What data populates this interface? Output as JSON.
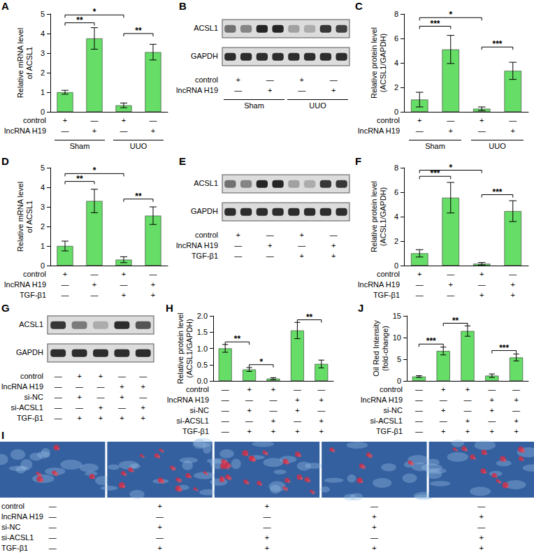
{
  "chart_data": [
    {
      "panel": "A",
      "type": "bar",
      "ylabel": "Relative mRNA level\nof ACSL1",
      "categories": [
        null,
        null,
        null,
        null
      ],
      "values": [
        1.0,
        3.75,
        0.33,
        3.05
      ],
      "errors": [
        0.1,
        0.55,
        0.12,
        0.4
      ],
      "color": "#66dd66",
      "ylim": [
        0,
        5
      ],
      "yticks": [
        0,
        1,
        2,
        3,
        4,
        5
      ],
      "grid": false,
      "conditions": [
        {
          "label": "control",
          "marks": [
            "+",
            "—",
            "+",
            "—"
          ]
        },
        {
          "label": "lncRNA H19",
          "marks": [
            "—",
            "+",
            "—",
            "+"
          ]
        }
      ],
      "groups": [
        {
          "label": "Sham",
          "from": 0,
          "to": 1
        },
        {
          "label": "UUO",
          "from": 2,
          "to": 3
        }
      ],
      "significance": [
        {
          "from": 0,
          "to": 1,
          "y": 4.55,
          "text": "**"
        },
        {
          "from": 0,
          "to": 2,
          "y": 4.95,
          "text": "*"
        },
        {
          "from": 2,
          "to": 3,
          "y": 4.0,
          "text": "**"
        }
      ]
    },
    {
      "panel": "C",
      "type": "bar",
      "ylabel": "Relative protein level\n(ACSL1/GAPDH)",
      "categories": [
        null,
        null,
        null,
        null
      ],
      "values": [
        1.0,
        5.1,
        0.25,
        3.35
      ],
      "errors": [
        0.6,
        1.15,
        0.15,
        0.7
      ],
      "color": "#66dd66",
      "ylim": [
        0,
        8
      ],
      "yticks": [
        0,
        2,
        4,
        6,
        8
      ],
      "grid": false,
      "conditions": [
        {
          "label": "control",
          "marks": [
            "+",
            "—",
            "+",
            "—"
          ]
        },
        {
          "label": "lncRNA H19",
          "marks": [
            "—",
            "+",
            "—",
            "+"
          ]
        }
      ],
      "groups": [
        {
          "label": "Sham",
          "from": 0,
          "to": 1
        },
        {
          "label": "UUO",
          "from": 2,
          "to": 3
        }
      ],
      "significance": [
        {
          "from": 0,
          "to": 1,
          "y": 7.0,
          "text": "***"
        },
        {
          "from": 0,
          "to": 2,
          "y": 7.7,
          "text": "*"
        },
        {
          "from": 2,
          "to": 3,
          "y": 5.3,
          "text": "***"
        }
      ]
    },
    {
      "panel": "D",
      "type": "bar",
      "ylabel": "Relative mRNA level\nof ACSL1",
      "categories": [
        null,
        null,
        null,
        null
      ],
      "values": [
        1.0,
        3.3,
        0.3,
        2.55
      ],
      "errors": [
        0.25,
        0.6,
        0.15,
        0.45
      ],
      "color": "#66dd66",
      "ylim": [
        0,
        5
      ],
      "yticks": [
        0,
        1,
        2,
        3,
        4,
        5
      ],
      "grid": false,
      "conditions": [
        {
          "label": "control",
          "marks": [
            "+",
            "—",
            "+",
            "—"
          ]
        },
        {
          "label": "lncRNA H19",
          "marks": [
            "—",
            "+",
            "—",
            "+"
          ]
        },
        {
          "label": "TGF-β1",
          "marks": [
            "—",
            "—",
            "+",
            "+"
          ]
        }
      ],
      "significance": [
        {
          "from": 0,
          "to": 1,
          "y": 4.3,
          "text": "**"
        },
        {
          "from": 0,
          "to": 2,
          "y": 4.7,
          "text": "*"
        },
        {
          "from": 2,
          "to": 3,
          "y": 3.4,
          "text": "**"
        }
      ]
    },
    {
      "panel": "F",
      "type": "bar",
      "ylabel": "Relative protein level\n(ACSL1/GAPDH)",
      "categories": [
        null,
        null,
        null,
        null
      ],
      "values": [
        1.0,
        5.55,
        0.15,
        4.45
      ],
      "errors": [
        0.3,
        1.25,
        0.1,
        0.85
      ],
      "color": "#66dd66",
      "ylim": [
        0,
        8
      ],
      "yticks": [
        0,
        2,
        4,
        6,
        8
      ],
      "grid": false,
      "conditions": [
        {
          "label": "control",
          "marks": [
            "+",
            "—",
            "+",
            "—"
          ]
        },
        {
          "label": "lncRNA H19",
          "marks": [
            "—",
            "+",
            "—",
            "+"
          ]
        },
        {
          "label": "TGF-β1",
          "marks": [
            "—",
            "—",
            "+",
            "+"
          ]
        }
      ],
      "significance": [
        {
          "from": 0,
          "to": 1,
          "y": 7.3,
          "text": "***"
        },
        {
          "from": 0,
          "to": 2,
          "y": 7.8,
          "text": "*"
        },
        {
          "from": 2,
          "to": 3,
          "y": 5.8,
          "text": "***"
        }
      ]
    },
    {
      "panel": "H",
      "type": "bar",
      "ylabel": "Relative protein level\n(ACSL1/GAPDH)",
      "categories": [
        null,
        null,
        null,
        null,
        null
      ],
      "values": [
        1.0,
        0.35,
        0.07,
        1.55,
        0.52
      ],
      "errors": [
        0.12,
        0.06,
        0.03,
        0.25,
        0.12
      ],
      "color": "#66dd66",
      "ylim": [
        0,
        2
      ],
      "yticks": [
        {
          "value": 0,
          "label": "0.0"
        },
        {
          "value": 0.5,
          "label": "0.5"
        },
        {
          "value": 1,
          "label": "1.0"
        },
        {
          "value": 1.5,
          "label": "1.5"
        },
        {
          "value": 2,
          "label": "2.0"
        }
      ],
      "grid": false,
      "conditions": [
        {
          "label": "control",
          "marks": [
            "—",
            "+",
            "+",
            "—",
            "—"
          ]
        },
        {
          "label": "lncRNA H19",
          "marks": [
            "—",
            "—",
            "—",
            "+",
            "+"
          ]
        },
        {
          "label": "si-NC",
          "marks": [
            "—",
            "+",
            "—",
            "+",
            "—"
          ]
        },
        {
          "label": "si-ACSL1",
          "marks": [
            "—",
            "—",
            "+",
            "—",
            "+"
          ]
        },
        {
          "label": "TGF-β1",
          "marks": [
            "—",
            "+",
            "+",
            "+",
            "+"
          ]
        }
      ],
      "significance": [
        {
          "from": 0,
          "to": 1,
          "y": 1.2,
          "text": "**"
        },
        {
          "from": 1,
          "to": 2,
          "y": 0.5,
          "text": "*"
        },
        {
          "from": 3,
          "to": 4,
          "y": 1.88,
          "text": "**"
        }
      ]
    },
    {
      "panel": "J",
      "type": "bar",
      "ylabel": "Oil Red Intensity\n(fold-change)",
      "categories": [
        null,
        null,
        null,
        null,
        null
      ],
      "values": [
        1.0,
        6.9,
        11.5,
        1.2,
        5.4
      ],
      "errors": [
        0.2,
        0.9,
        1.2,
        0.4,
        0.8
      ],
      "color": "#66dd66",
      "ylim": [
        0,
        15
      ],
      "yticks": [
        0,
        5,
        10,
        15
      ],
      "grid": false,
      "conditions": [
        {
          "label": "control",
          "marks": [
            "—",
            "+",
            "+",
            "—",
            "—"
          ]
        },
        {
          "label": "lncRNA H19",
          "marks": [
            "—",
            "—",
            "—",
            "+",
            "+"
          ]
        },
        {
          "label": "si-NC",
          "marks": [
            "—",
            "+",
            "—",
            "+",
            "—"
          ]
        },
        {
          "label": "si-ACSL1",
          "marks": [
            "—",
            "—",
            "+",
            "—",
            "+"
          ]
        },
        {
          "label": "TGF-β1",
          "marks": [
            "—",
            "+",
            "+",
            "+",
            "+"
          ]
        }
      ],
      "significance": [
        {
          "from": 0,
          "to": 1,
          "y": 8.5,
          "text": "***"
        },
        {
          "from": 1,
          "to": 2,
          "y": 13.3,
          "text": "**"
        },
        {
          "from": 3,
          "to": 4,
          "y": 7.0,
          "text": "***"
        }
      ]
    }
  ],
  "blots": [
    {
      "panel": "B",
      "lanes": 8,
      "rows": [
        {
          "label": "ACSL1",
          "bands": [
            0.55,
            0.45,
            0.95,
            0.95,
            0.3,
            0.25,
            0.85,
            0.8
          ]
        },
        {
          "label": "GAPDH",
          "bands": [
            0.9,
            0.9,
            0.9,
            0.9,
            0.9,
            0.9,
            0.9,
            0.9
          ]
        }
      ],
      "conditions": [
        {
          "label": "control",
          "marks": [
            "+",
            "—",
            "+",
            "—"
          ]
        },
        {
          "label": "lncRNA H19",
          "marks": [
            "—",
            "+",
            "—",
            "+"
          ]
        }
      ],
      "groups": [
        {
          "label": "Sham",
          "from": 0,
          "to": 1
        },
        {
          "label": "UUO",
          "from": 2,
          "to": 3
        }
      ]
    },
    {
      "panel": "E",
      "lanes": 8,
      "rows": [
        {
          "label": "ACSL1",
          "bands": [
            0.55,
            0.45,
            0.95,
            0.95,
            0.3,
            0.25,
            0.85,
            0.85
          ]
        },
        {
          "label": "GAPDH",
          "bands": [
            0.9,
            0.9,
            0.9,
            0.9,
            0.9,
            0.9,
            0.9,
            0.9
          ]
        }
      ],
      "conditions": [
        {
          "label": "control",
          "marks": [
            "+",
            "—",
            "+",
            "—"
          ]
        },
        {
          "label": "lncRNA H19",
          "marks": [
            "—",
            "+",
            "—",
            "+"
          ]
        },
        {
          "label": "TGF-β1",
          "marks": [
            "—",
            "—",
            "+",
            "+"
          ]
        }
      ]
    },
    {
      "panel": "G",
      "lanes": 5,
      "rows": [
        {
          "label": "ACSL1",
          "bands": [
            0.85,
            0.5,
            0.25,
            0.9,
            0.7
          ]
        },
        {
          "label": "GAPDH",
          "bands": [
            0.9,
            0.9,
            0.9,
            0.9,
            0.9
          ]
        }
      ],
      "conditions": [
        {
          "label": "control",
          "marks": [
            "—",
            "+",
            "+",
            "—",
            "—"
          ]
        },
        {
          "label": "lncRNA H19",
          "marks": [
            "—",
            "—",
            "—",
            "+",
            "+"
          ]
        },
        {
          "label": "si-NC",
          "marks": [
            "—",
            "+",
            "—",
            "+",
            "—"
          ]
        },
        {
          "label": "si-ACSL1",
          "marks": [
            "—",
            "—",
            "+",
            "—",
            "+"
          ]
        },
        {
          "label": "TGF-β1",
          "marks": [
            "—",
            "+",
            "+",
            "+",
            "+"
          ]
        }
      ]
    }
  ],
  "micrographs": {
    "panel": "I",
    "conditions": [
      {
        "label": "control",
        "marks": [
          "—",
          "+",
          "+",
          "—",
          "—"
        ]
      },
      {
        "label": "lncRNA H19",
        "marks": [
          "—",
          "—",
          "—",
          "+",
          "+"
        ]
      },
      {
        "label": "si-NC",
        "marks": [
          "—",
          "+",
          "—",
          "+",
          "—"
        ]
      },
      {
        "label": "si-ACSL1",
        "marks": [
          "—",
          "—",
          "+",
          "—",
          "+"
        ]
      },
      {
        "label": "TGF-β1",
        "marks": [
          "—",
          "+",
          "+",
          "+",
          "+"
        ]
      }
    ]
  }
}
